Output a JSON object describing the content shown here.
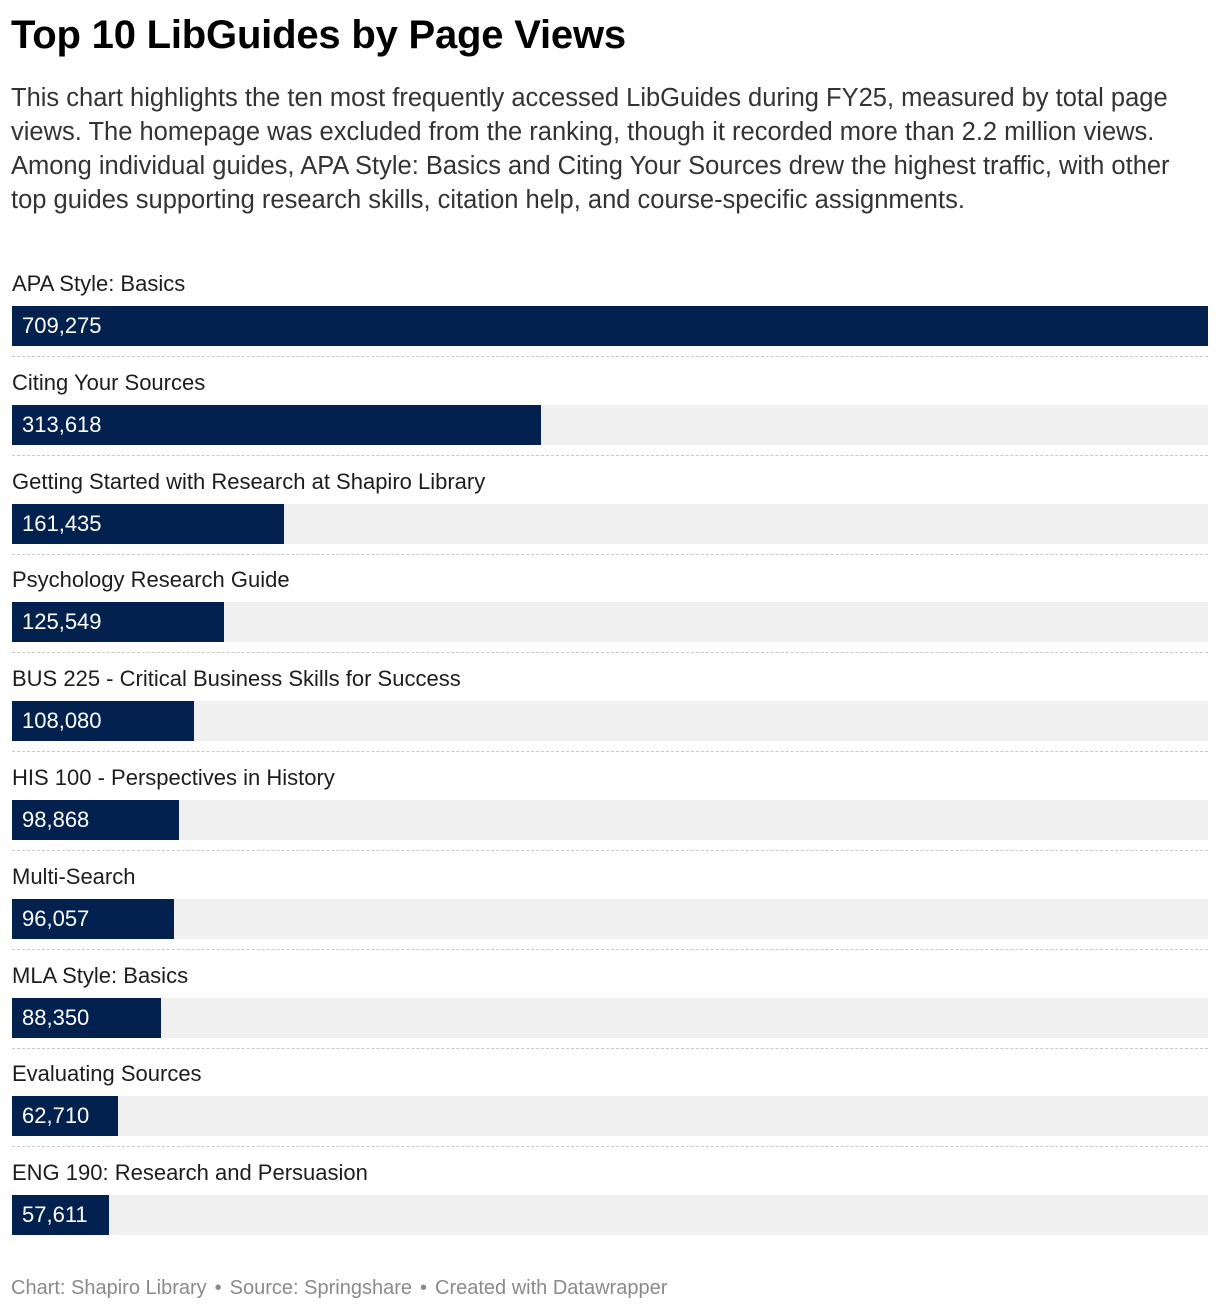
{
  "title": "Top 10 LibGuides by Page Views",
  "description": "This chart highlights the ten most frequently accessed LibGuides during FY25, measured by total page views. The homepage was excluded from the ranking, though it recorded more than 2.2 million views. Among individual guides, APA Style: Basics and Citing Your Sources drew the highest traffic, with other top guides supporting research skills, citation help, and course-specific assignments.",
  "footer": {
    "chart_credit": "Chart: Shapiro Library",
    "source": "Source: Springshare",
    "created_with": "Created with Datawrapper",
    "separator": "•"
  },
  "colors": {
    "bar": "#02214f",
    "track": "#f0f0f0"
  },
  "chart_data": {
    "type": "bar",
    "orientation": "horizontal",
    "categories": [
      "APA Style: Basics",
      "Citing Your Sources",
      "Getting Started with Research at Shapiro Library",
      "Psychology Research Guide",
      "BUS 225 - Critical Business Skills for Success",
      "HIS 100 - Perspectives in History",
      "Multi-Search",
      "MLA Style: Basics",
      "Evaluating Sources",
      "ENG 190: Research and Persuasion"
    ],
    "values": [
      709275,
      313618,
      161435,
      125549,
      108080,
      98868,
      96057,
      88350,
      62710,
      57611
    ],
    "value_labels": [
      "709,275",
      "313,618",
      "161,435",
      "125,549",
      "108,080",
      "98,868",
      "96,057",
      "88,350",
      "62,710",
      "57,611"
    ],
    "xlim": [
      0,
      709275
    ],
    "grid": false,
    "legend": "none"
  }
}
